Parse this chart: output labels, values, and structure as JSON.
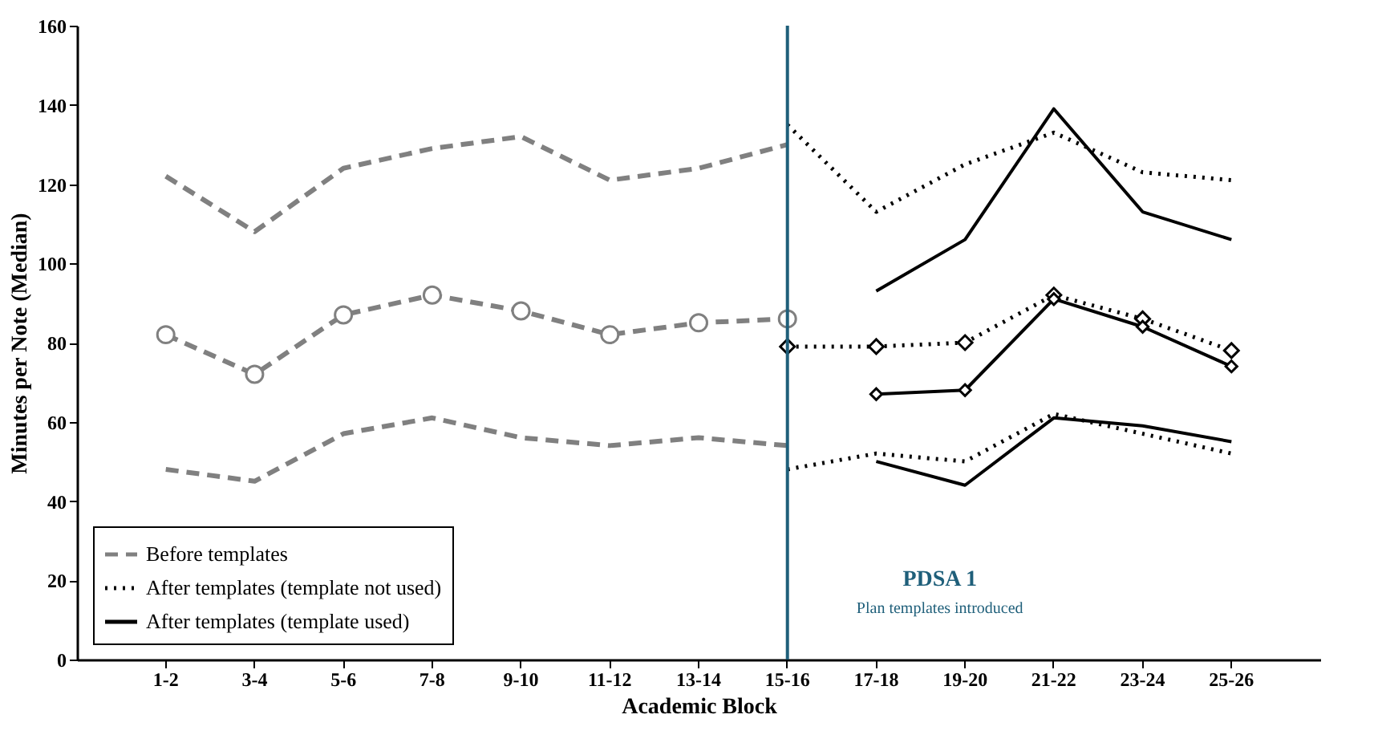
{
  "chart_data": {
    "type": "line",
    "xlabel": "Academic Block",
    "ylabel": "Minutes per Note (Median)",
    "categories": [
      "1-2",
      "3-4",
      "5-6",
      "7-8",
      "9-10",
      "11-12",
      "13-14",
      "15-16",
      "17-18",
      "19-20",
      "21-22",
      "23-24",
      "25-26"
    ],
    "ylim": [
      0,
      160
    ],
    "yticks": [
      0,
      20,
      40,
      60,
      80,
      100,
      120,
      140,
      160
    ],
    "grid": false,
    "legend": "bottom left",
    "series": [
      {
        "name": "Before templates",
        "color": "#808080",
        "line_style": "dashed",
        "marker": "circle",
        "values": [
          82,
          72,
          87,
          92,
          88,
          82,
          85,
          86,
          null,
          null,
          null,
          null,
          null
        ]
      },
      {
        "color": "#808080",
        "line_style": "dashed",
        "values": [
          122,
          108,
          124,
          129,
          132,
          121,
          124,
          130,
          null,
          null,
          null,
          null,
          null
        ]
      },
      {
        "color": "#808080",
        "line_style": "dashed",
        "values": [
          48,
          45,
          57,
          61,
          56,
          54,
          56,
          54,
          null,
          null,
          null,
          null,
          null
        ]
      },
      {
        "name": "After templates (template not used)",
        "color": "#000000",
        "line_style": "dotted",
        "marker": "diamond",
        "values": [
          null,
          null,
          null,
          null,
          null,
          null,
          null,
          79,
          79,
          80,
          92,
          86,
          78
        ]
      },
      {
        "color": "#000000",
        "line_style": "dotted",
        "values": [
          null,
          null,
          null,
          null,
          null,
          null,
          null,
          135,
          113,
          125,
          133,
          123,
          121
        ]
      },
      {
        "color": "#000000",
        "line_style": "dotted",
        "values": [
          null,
          null,
          null,
          null,
          null,
          null,
          null,
          48,
          52,
          50,
          62,
          57,
          52
        ]
      },
      {
        "name": "After templates (template used)",
        "color": "#000000",
        "line_style": "solid",
        "marker": "diamond",
        "values": [
          null,
          null,
          null,
          null,
          null,
          null,
          null,
          null,
          67,
          68,
          91,
          84,
          74
        ]
      },
      {
        "color": "#000000",
        "line_style": "solid",
        "values": [
          null,
          null,
          null,
          null,
          null,
          null,
          null,
          null,
          93,
          106,
          139,
          113,
          106
        ]
      },
      {
        "color": "#000000",
        "line_style": "solid",
        "values": [
          null,
          null,
          null,
          null,
          null,
          null,
          null,
          null,
          50,
          44,
          61,
          59,
          55
        ]
      }
    ],
    "ref_lines": [
      {
        "axis": "x",
        "value": "15-16",
        "label": "PDSA 1",
        "color": "#1f5f7a"
      }
    ],
    "annotations": [
      "Plan templates introduced"
    ]
  }
}
